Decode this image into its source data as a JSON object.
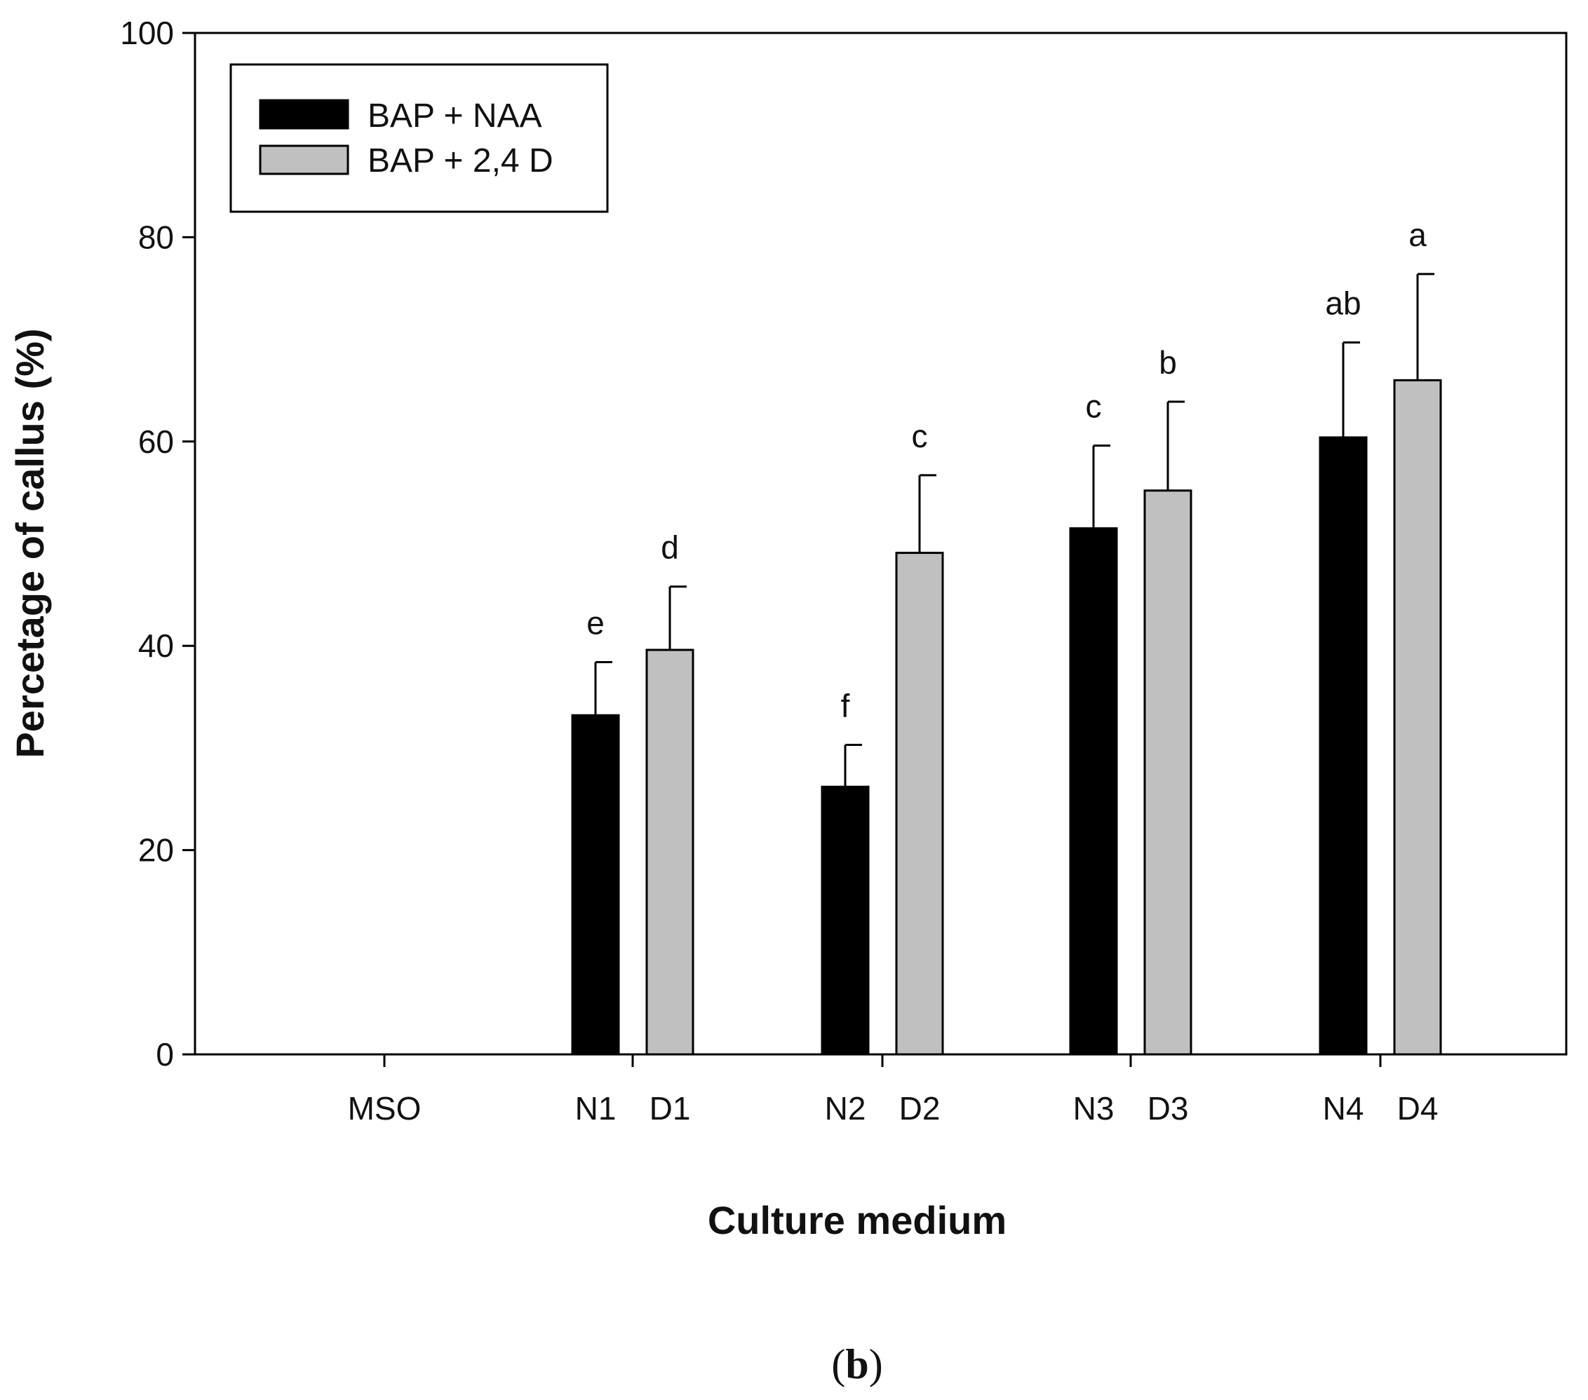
{
  "chart_data": {
    "type": "bar",
    "title": "",
    "xlabel": "Culture medium",
    "ylabel": "Percetage of callus (%)",
    "ylim": [
      0,
      100
    ],
    "yticks": [
      0,
      20,
      40,
      60,
      80,
      100
    ],
    "groups": [
      "MSO",
      "N1 D1",
      "N2 D2",
      "N3 D3",
      "N4 D4"
    ],
    "series": [
      {
        "name": "BAP + NAA",
        "color": "#000000",
        "bars": [
          {
            "group": 1,
            "label": "N1",
            "value": 33.2,
            "error": 5.2,
            "letter": "e"
          },
          {
            "group": 2,
            "label": "N2",
            "value": 26.2,
            "error": 4.1,
            "letter": "f"
          },
          {
            "group": 3,
            "label": "N3",
            "value": 51.5,
            "error": 8.1,
            "letter": "c"
          },
          {
            "group": 4,
            "label": "N4",
            "value": 60.4,
            "error": 9.3,
            "letter": "ab"
          }
        ]
      },
      {
        "name": "BAP + 2,4 D",
        "color": "#c0c0c0",
        "bars": [
          {
            "group": 1,
            "label": "D1",
            "value": 39.6,
            "error": 6.2,
            "letter": "d"
          },
          {
            "group": 2,
            "label": "D2",
            "value": 49.1,
            "error": 7.6,
            "letter": "c"
          },
          {
            "group": 3,
            "label": "D3",
            "value": 55.2,
            "error": 8.7,
            "letter": "b"
          },
          {
            "group": 4,
            "label": "D4",
            "value": 66.0,
            "error": 10.4,
            "letter": "a"
          }
        ]
      }
    ],
    "category_labels": [
      {
        "group": 0,
        "slot": "center",
        "text": "MSO"
      },
      {
        "group": 1,
        "slot": "left",
        "text": "N1"
      },
      {
        "group": 1,
        "slot": "right",
        "text": "D1"
      },
      {
        "group": 2,
        "slot": "left",
        "text": "N2"
      },
      {
        "group": 2,
        "slot": "right",
        "text": "D2"
      },
      {
        "group": 3,
        "slot": "left",
        "text": "N3"
      },
      {
        "group": 3,
        "slot": "right",
        "text": "D3"
      },
      {
        "group": 4,
        "slot": "left",
        "text": "N4"
      },
      {
        "group": 4,
        "slot": "right",
        "text": "D4"
      }
    ],
    "legend": {
      "position": "top-left",
      "entries": [
        {
          "label": "BAP + NAA",
          "color": "#000000"
        },
        {
          "label": "BAP + 2,4 D",
          "color": "#c0c0c0"
        }
      ]
    },
    "grid": false
  },
  "panel": {
    "open": "(",
    "letter": "b",
    "close": ")"
  }
}
